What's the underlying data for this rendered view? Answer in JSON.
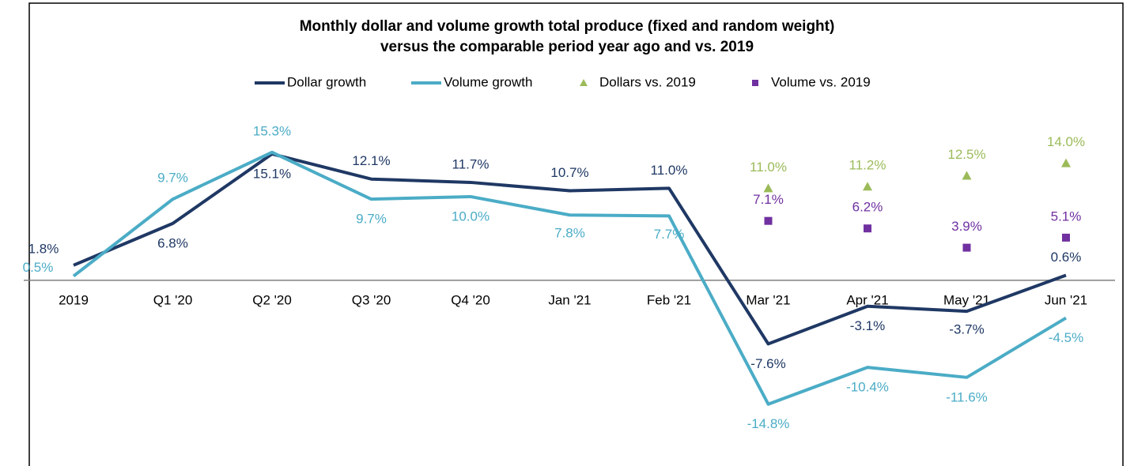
{
  "chart_data": {
    "type": "line",
    "title": [
      "Monthly dollar and volume growth  total produce (fixed and random weight)",
      "versus the comparable period year ago and vs. 2019"
    ],
    "categories": [
      "2019",
      "Q1 '20",
      "Q2 '20",
      "Q3 '20",
      "Q4 '20",
      "Jan '21",
      "Feb '21",
      "Mar '21",
      "Apr '21",
      "May '21",
      "Jun '21"
    ],
    "ylim": [
      -22,
      20
    ],
    "series": [
      {
        "name": "Dollar growth",
        "color": "#1f3864",
        "style": "line",
        "values": [
          1.8,
          6.8,
          15.1,
          12.1,
          11.7,
          10.7,
          11.0,
          -7.6,
          -3.1,
          -3.7,
          0.6
        ],
        "value_labels": [
          "1.8%",
          "6.8%",
          "15.1%",
          "12.1%",
          "11.7%",
          "10.7%",
          "11.0%",
          "-7.6%",
          "-3.1%",
          "-3.7%",
          "0.6%"
        ]
      },
      {
        "name": "Volume growth",
        "color": "#4bacc6",
        "style": "line",
        "values": [
          0.5,
          9.7,
          15.3,
          9.7,
          10.0,
          7.8,
          7.7,
          -14.8,
          -10.4,
          -11.6,
          -4.5
        ],
        "value_labels": [
          "0.5%",
          "9.7%",
          "15.3%",
          "9.7%",
          "10.0%",
          "7.8%",
          "7.7%",
          "-14.8%",
          "-10.4%",
          "-11.6%",
          "-4.5%"
        ]
      },
      {
        "name": "Dollars vs. 2019",
        "color": "#9bbb59",
        "style": "triangle",
        "values": [
          null,
          null,
          null,
          null,
          null,
          null,
          null,
          11.0,
          11.2,
          12.5,
          14.0
        ],
        "value_labels": [
          null,
          null,
          null,
          null,
          null,
          null,
          null,
          "11.0%",
          "11.2%",
          "12.5%",
          "14.0%"
        ]
      },
      {
        "name": "Volume vs. 2019",
        "color": "#7030a0",
        "style": "square",
        "values": [
          null,
          null,
          null,
          null,
          null,
          null,
          null,
          7.1,
          6.2,
          3.9,
          5.1
        ],
        "value_labels": [
          null,
          null,
          null,
          null,
          null,
          null,
          null,
          "7.1%",
          "6.2%",
          "3.9%",
          "5.1%"
        ]
      }
    ]
  }
}
